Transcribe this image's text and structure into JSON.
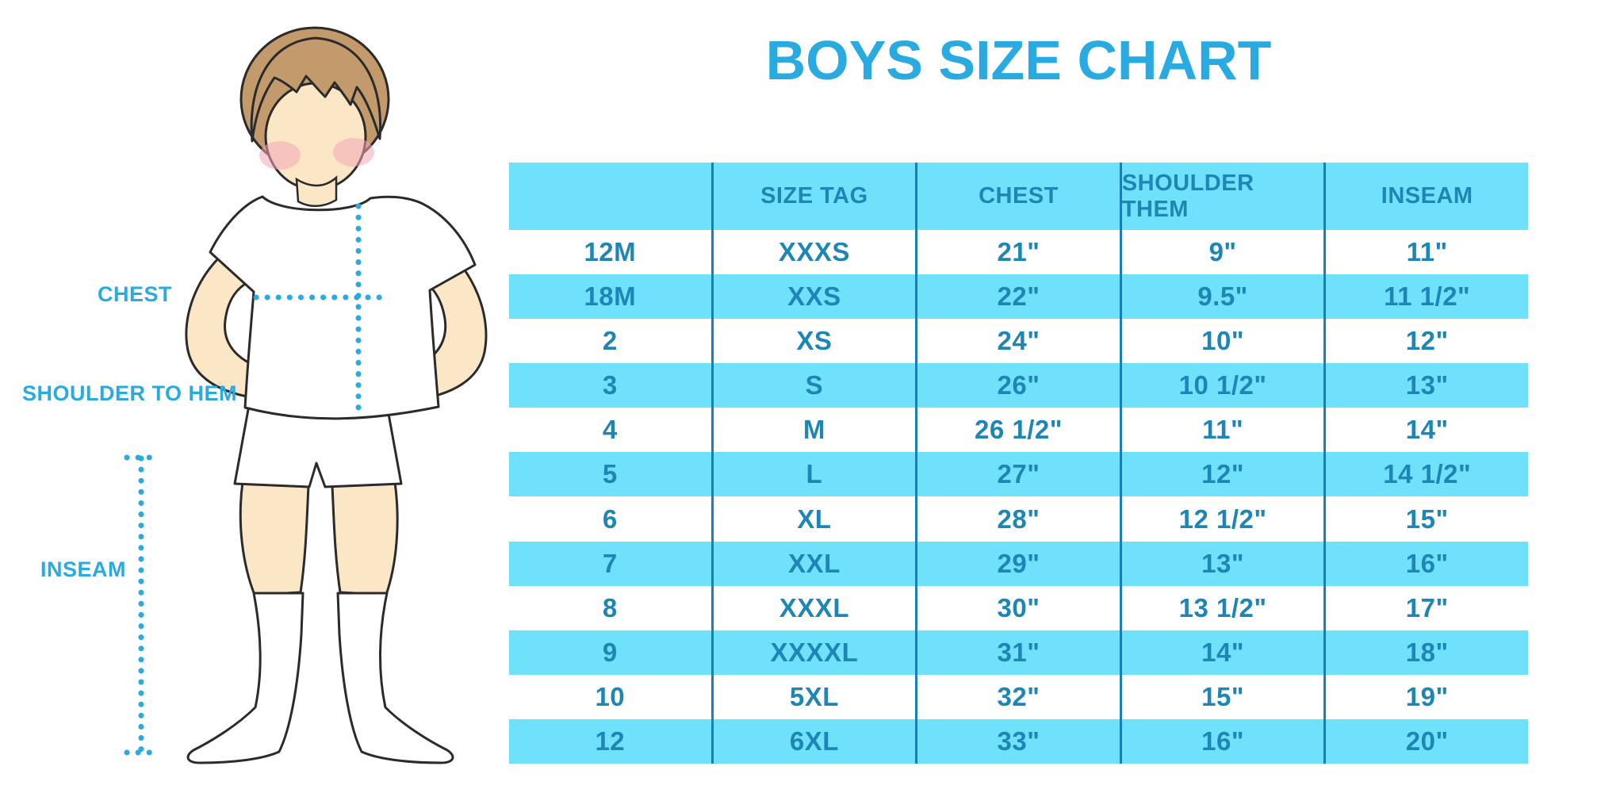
{
  "title": "BOYS SIZE CHART",
  "colors": {
    "accent_blue": "#29ABE2",
    "table_stripe_cyan": "#70E1FA",
    "table_text_blue": "#1E86B5",
    "table_divider_blue": "#1981B1",
    "skin": "#FBE7C5",
    "hair_brown": "#C39A6B"
  },
  "diagram": {
    "chest_label": "CHEST",
    "shoulder_to_hem_label": "SHOULDER TO HEM",
    "inseam_label": "INSEAM"
  },
  "chart_data": {
    "type": "table",
    "title": "BOYS SIZE CHART",
    "columns": [
      "",
      "SIZE TAG",
      "CHEST",
      "SHOULDER THEM",
      "INSEAM"
    ],
    "rows": [
      [
        "12M",
        "XXXS",
        "21\"",
        "9\"",
        "11\""
      ],
      [
        "18M",
        "XXS",
        "22\"",
        "9.5\"",
        "11 1/2\""
      ],
      [
        "2",
        "XS",
        "24\"",
        "10\"",
        "12\""
      ],
      [
        "3",
        "S",
        "26\"",
        "10 1/2\"",
        "13\""
      ],
      [
        "4",
        "M",
        "26 1/2\"",
        "11\"",
        "14\""
      ],
      [
        "5",
        "L",
        "27\"",
        "12\"",
        "14 1/2\""
      ],
      [
        "6",
        "XL",
        "28\"",
        "12 1/2\"",
        "15\""
      ],
      [
        "7",
        "XXL",
        "29\"",
        "13\"",
        "16\""
      ],
      [
        "8",
        "XXXL",
        "30\"",
        "13 1/2\"",
        "17\""
      ],
      [
        "9",
        "XXXXL",
        "31\"",
        "14\"",
        "18\""
      ],
      [
        "10",
        "5XL",
        "32\"",
        "15\"",
        "19\""
      ],
      [
        "12",
        "6XL",
        "33\"",
        "16\"",
        "20\""
      ]
    ],
    "legend": "none",
    "grid": "vertical-dividers-only"
  }
}
